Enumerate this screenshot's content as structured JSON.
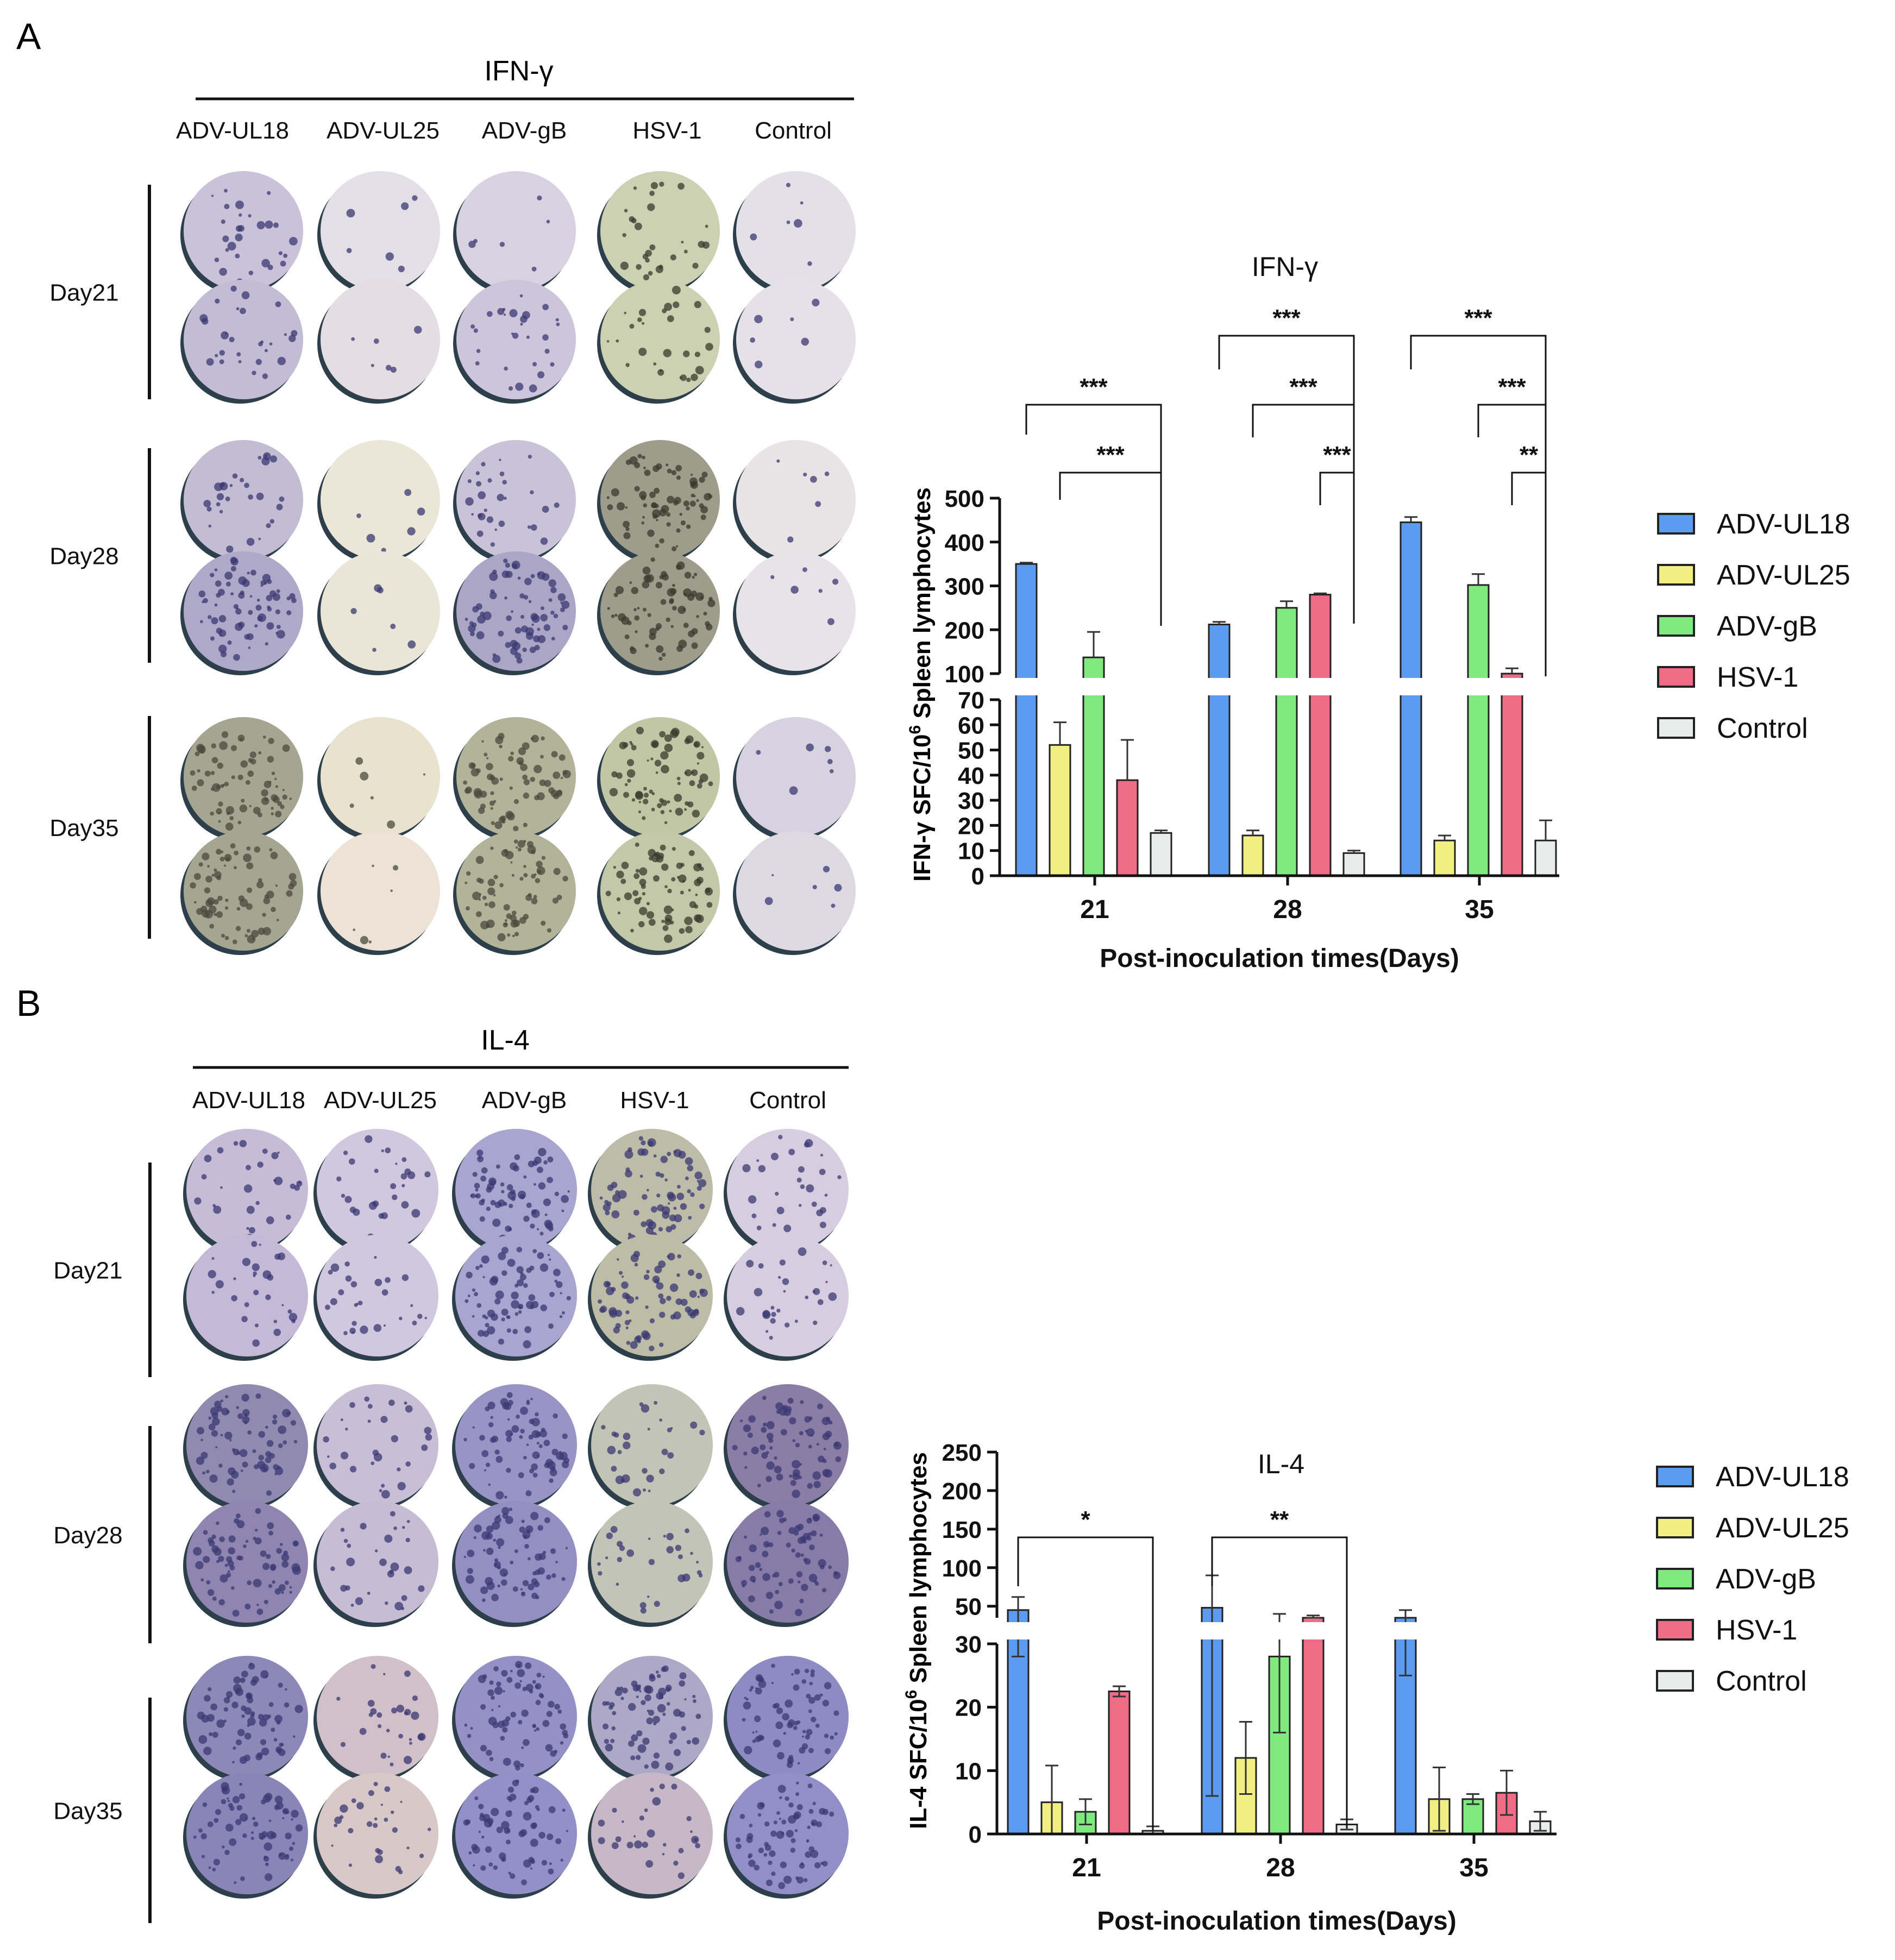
{
  "panels": {
    "A": {
      "letter": "A",
      "title": "IFN-γ",
      "groups": [
        "ADV-UL18",
        "ADV-UL25",
        "ADV-gB",
        "HSV-1",
        "Control"
      ],
      "days": [
        "Day21",
        "Day28",
        "Day35"
      ]
    },
    "B": {
      "letter": "B",
      "title": "IL-4",
      "groups": [
        "ADV-UL18",
        "ADV-UL25",
        "ADV-gB",
        "HSV-1",
        "Control"
      ],
      "days": [
        "Day21",
        "Day28",
        "Day35"
      ]
    }
  },
  "well_colors": {
    "A": [
      [
        "#c9c2d8",
        "#e2dfe6",
        "#d7d1e0",
        "#ccd1b4",
        "#e4e0e8"
      ],
      [
        "#c2bcd4",
        "#e4dde2",
        "#cdc6da",
        "#ccd1b2",
        "#e6e1e8"
      ],
      [
        "#c3bdd3",
        "#ece6d8",
        "#c9c3d8",
        "#9e9d8c",
        "#e8e3e4"
      ],
      [
        "#aea9c8",
        "#ebe5d8",
        "#aba6c6",
        "#9e9c8a",
        "#e8e3e8"
      ],
      [
        "#a4a692",
        "#e8e2ce",
        "#b2b49a",
        "#c1c7a5",
        "#d6d2e0"
      ],
      [
        "#a4a692",
        "#ece2d6",
        "#b2b49a",
        "#c3c8a8",
        "#dcd9e2"
      ]
    ],
    "B": [
      [
        "#c6bcd8",
        "#cfc8de",
        "#a9a4d0",
        "#bdbca8",
        "#d6cde0"
      ],
      [
        "#c4bad8",
        "#cfc8de",
        "#a9a4d0",
        "#bdbca6",
        "#d6cde0"
      ],
      [
        "#908ab0",
        "#c8bfd6",
        "#9a94c6",
        "#c2c4b6",
        "#8a7ea6"
      ],
      [
        "#8e86b0",
        "#c6bcd4",
        "#948ec2",
        "#c3c4b8",
        "#877ca8"
      ],
      [
        "#8d88b8",
        "#d2c0c8",
        "#9590c6",
        "#aca8c6",
        "#8e8ac4"
      ],
      [
        "#8a85b8",
        "#d8c8c8",
        "#9390c8",
        "#c6b8c6",
        "#928fc8"
      ]
    ]
  },
  "chart_data": [
    {
      "type": "bar",
      "title": "IFN-γ",
      "xlabel": "Post-inoculation times(Days)",
      "ylabel": "IFN-γ SFC/10^6 Spleen lymphocytes",
      "ylabel_parts": {
        "base": "IFN-γ SFC/10",
        "sup": "6",
        "rest": " Spleen lymphocytes"
      },
      "categories": [
        "21",
        "28",
        "35"
      ],
      "broken_axis": {
        "lower": [
          0,
          70
        ],
        "upper": [
          100,
          500
        ]
      },
      "lower_ticks": [
        0,
        10,
        20,
        30,
        40,
        50,
        60,
        70
      ],
      "upper_ticks": [
        100,
        200,
        300,
        400,
        500
      ],
      "series": [
        {
          "name": "ADV-UL18",
          "color": "#5b9bf0",
          "values": [
            350,
            212,
            445
          ],
          "errors": [
            3,
            6,
            12
          ]
        },
        {
          "name": "ADV-UL25",
          "color": "#f2ef82",
          "values": [
            52,
            16,
            14
          ],
          "errors": [
            9,
            2,
            2
          ]
        },
        {
          "name": "ADV-gB",
          "color": "#7fe87f",
          "values": [
            137,
            250,
            302
          ],
          "errors": [
            58,
            15,
            25
          ]
        },
        {
          "name": "HSV-1",
          "color": "#f06b86",
          "values": [
            38,
            280,
            97
          ],
          "errors": [
            16,
            3,
            15
          ]
        },
        {
          "name": "Control",
          "color": "#e8ecea",
          "values": [
            17,
            9,
            14
          ],
          "errors": [
            1,
            1,
            8
          ]
        }
      ],
      "significance": [
        {
          "label": "***",
          "day": "21",
          "from": "ADV-UL18",
          "to": "Control"
        },
        {
          "label": "***",
          "day": "21",
          "from": "ADV-UL25",
          "to": "Control"
        },
        {
          "label": "***",
          "day": "28",
          "from": "ADV-UL18",
          "to": "Control"
        },
        {
          "label": "***",
          "day": "28",
          "from": "ADV-UL25",
          "to": "Control"
        },
        {
          "label": "***",
          "day": "28",
          "from": "HSV-1",
          "to": "Control"
        },
        {
          "label": "***",
          "day": "35",
          "from": "ADV-UL18",
          "to": "Control"
        },
        {
          "label": "***",
          "day": "35",
          "from": "ADV-gB",
          "to": "Control"
        },
        {
          "label": "**",
          "day": "35",
          "from": "HSV-1",
          "to": "Control"
        }
      ],
      "legend": [
        "ADV-UL18",
        "ADV-UL25",
        "ADV-gB",
        "HSV-1",
        "Control"
      ]
    },
    {
      "type": "bar",
      "title": "IL-4",
      "xlabel": "Post-inoculation times(Days)",
      "ylabel": "IL-4 SFC/10^6 Spleen lymphocytes",
      "ylabel_parts": {
        "base": "IL-4 SFC/10",
        "sup": "6",
        "rest": " Spleen lymphocytes"
      },
      "categories": [
        "21",
        "28",
        "35"
      ],
      "broken_axis": {
        "lower": [
          0,
          30
        ],
        "upper": [
          35,
          250
        ]
      },
      "lower_ticks": [
        0,
        10,
        20,
        30
      ],
      "upper_ticks": [
        50,
        100,
        150,
        200,
        250
      ],
      "series": [
        {
          "name": "ADV-UL18",
          "color": "#5b9bf0",
          "values": [
            45,
            48,
            35
          ],
          "errors": [
            17,
            42,
            10
          ]
        },
        {
          "name": "ADV-UL25",
          "color": "#f2ef82",
          "values": [
            5,
            12,
            5.5
          ],
          "errors": [
            5.8,
            5.7,
            5
          ]
        },
        {
          "name": "ADV-gB",
          "color": "#7fe87f",
          "values": [
            3.5,
            28,
            5.5
          ],
          "errors": [
            2,
            12,
            0.8
          ]
        },
        {
          "name": "HSV-1",
          "color": "#f06b86",
          "values": [
            22.5,
            35,
            6.5
          ],
          "errors": [
            0.8,
            3,
            3.5
          ]
        },
        {
          "name": "Control",
          "color": "#e8ecea",
          "values": [
            0.5,
            1.5,
            2
          ],
          "errors": [
            0.7,
            0.8,
            1.5
          ]
        }
      ],
      "significance": [
        {
          "label": "*",
          "day": "21",
          "from": "ADV-UL18",
          "to": "Control"
        },
        {
          "label": "**",
          "day": "28",
          "from": "ADV-UL18",
          "to": "Control"
        }
      ],
      "legend": [
        "ADV-UL18",
        "ADV-UL25",
        "ADV-gB",
        "HSV-1",
        "Control"
      ]
    }
  ]
}
